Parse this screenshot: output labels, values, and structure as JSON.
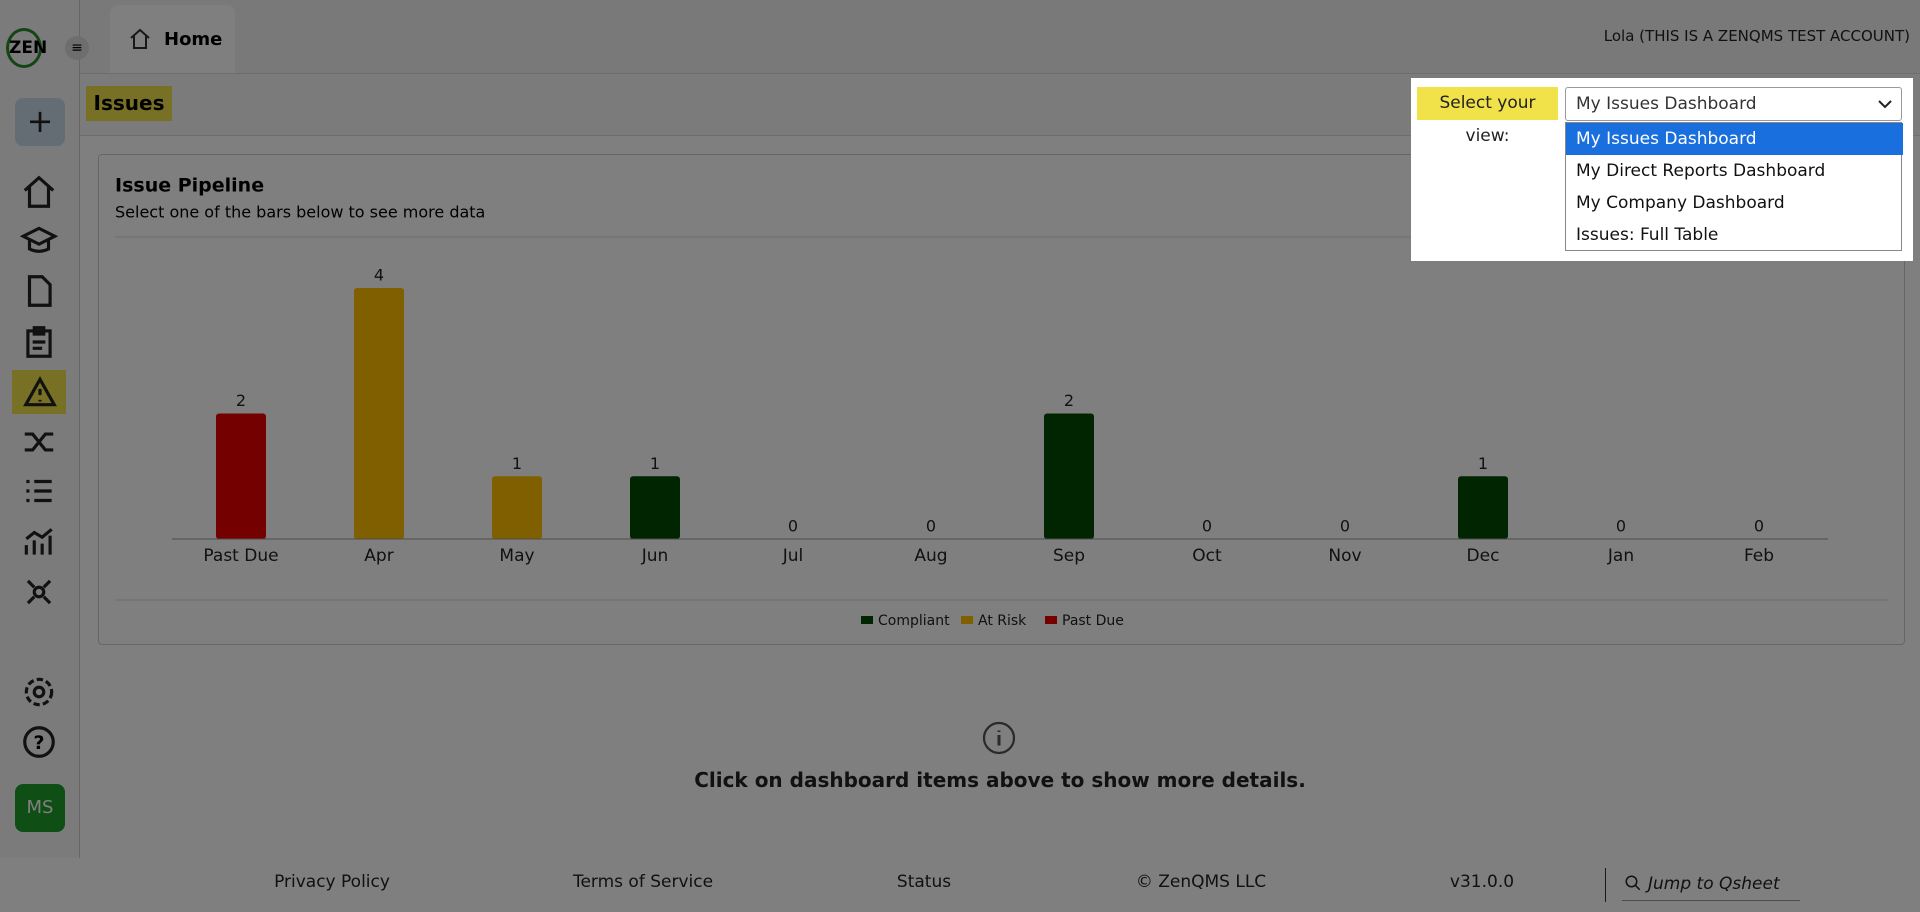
{
  "header": {
    "logo": "ZEN",
    "tab": "Home",
    "user": "Lola (THIS IS A ZENQMS TEST ACCOUNT)"
  },
  "sidebar": {
    "avatar": "MS"
  },
  "page": {
    "title": "Issues"
  },
  "view_selector": {
    "label": "Select your view:",
    "selected": "My Issues Dashboard",
    "options": [
      "My Issues Dashboard",
      "My Direct Reports Dashboard",
      "My Company Dashboard",
      "Issues: Full Table"
    ]
  },
  "chart_data": {
    "type": "bar",
    "title": "Issue Pipeline",
    "subtitle": "Select one of the bars below to see more data",
    "categories": [
      "Past Due",
      "Apr",
      "May",
      "Jun",
      "Jul",
      "Aug",
      "Sep",
      "Oct",
      "Nov",
      "Dec",
      "Jan",
      "Feb"
    ],
    "values": [
      2,
      4,
      1,
      1,
      0,
      0,
      2,
      0,
      0,
      1,
      0,
      0
    ],
    "colors": [
      "#e80000",
      "#ffbf00",
      "#ffbf00",
      "#004a00",
      null,
      null,
      "#004a00",
      null,
      null,
      "#004a00",
      null,
      null
    ],
    "ylim": [
      0,
      4
    ],
    "legend": [
      {
        "name": "Compliant",
        "color": "#004a00"
      },
      {
        "name": "At Risk",
        "color": "#ffbf00"
      },
      {
        "name": "Past Due",
        "color": "#e80000"
      }
    ]
  },
  "details": {
    "message": "Click on dashboard items above to show more details."
  },
  "footer": {
    "links": [
      "Privacy Policy",
      "Terms of Service",
      "Status",
      "© ZenQMS LLC",
      "v31.0.0"
    ],
    "search_placeholder": "Jump to Qsheet"
  }
}
